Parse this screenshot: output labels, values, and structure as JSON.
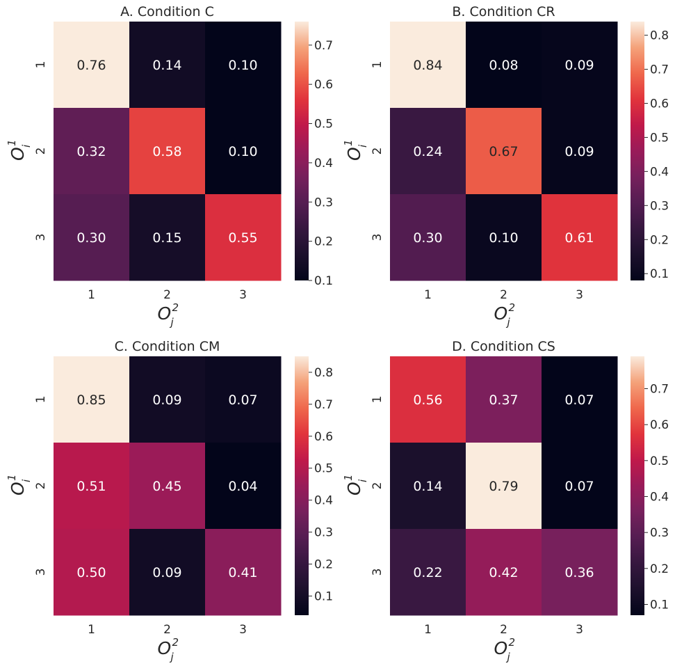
{
  "figure": {
    "axis_x_symbol": "O",
    "axis_x_subscript": "j",
    "axis_x_superscript": "2",
    "axis_y_symbol": "O",
    "axis_y_subscript": "i",
    "axis_y_superscript": "1"
  },
  "chart_data": [
    {
      "type": "heatmap",
      "title": "A. Condition C",
      "categories_x": [
        "1",
        "2",
        "3"
      ],
      "categories_y": [
        "1",
        "2",
        "3"
      ],
      "values": [
        [
          0.76,
          0.14,
          0.1
        ],
        [
          0.32,
          0.58,
          0.1
        ],
        [
          0.3,
          0.15,
          0.55
        ]
      ],
      "colorbar": {
        "min": 0.1,
        "max": 0.76,
        "ticks": [
          0.1,
          0.2,
          0.3,
          0.4,
          0.5,
          0.6,
          0.7
        ]
      },
      "colormap": "rocket"
    },
    {
      "type": "heatmap",
      "title": "B. Condition CR",
      "categories_x": [
        "1",
        "2",
        "3"
      ],
      "categories_y": [
        "1",
        "2",
        "3"
      ],
      "values": [
        [
          0.84,
          0.08,
          0.09
        ],
        [
          0.24,
          0.67,
          0.09
        ],
        [
          0.3,
          0.1,
          0.61
        ]
      ],
      "colorbar": {
        "min": 0.08,
        "max": 0.84,
        "ticks": [
          0.1,
          0.2,
          0.3,
          0.4,
          0.5,
          0.6,
          0.7,
          0.8
        ]
      },
      "colormap": "rocket"
    },
    {
      "type": "heatmap",
      "title": "C. Condition CM",
      "categories_x": [
        "1",
        "2",
        "3"
      ],
      "categories_y": [
        "1",
        "2",
        "3"
      ],
      "values": [
        [
          0.85,
          0.09,
          0.07
        ],
        [
          0.51,
          0.45,
          0.04
        ],
        [
          0.5,
          0.09,
          0.41
        ]
      ],
      "colorbar": {
        "min": 0.04,
        "max": 0.85,
        "ticks": [
          0.1,
          0.2,
          0.3,
          0.4,
          0.5,
          0.6,
          0.7,
          0.8
        ]
      },
      "colormap": "rocket"
    },
    {
      "type": "heatmap",
      "title": "D. Condition CS",
      "categories_x": [
        "1",
        "2",
        "3"
      ],
      "categories_y": [
        "1",
        "2",
        "3"
      ],
      "values": [
        [
          0.56,
          0.37,
          0.07
        ],
        [
          0.14,
          0.79,
          0.07
        ],
        [
          0.22,
          0.42,
          0.36
        ]
      ],
      "colorbar": {
        "min": 0.07,
        "max": 0.79,
        "ticks": [
          0.1,
          0.2,
          0.3,
          0.4,
          0.5,
          0.6,
          0.7
        ]
      },
      "colormap": "rocket"
    }
  ]
}
